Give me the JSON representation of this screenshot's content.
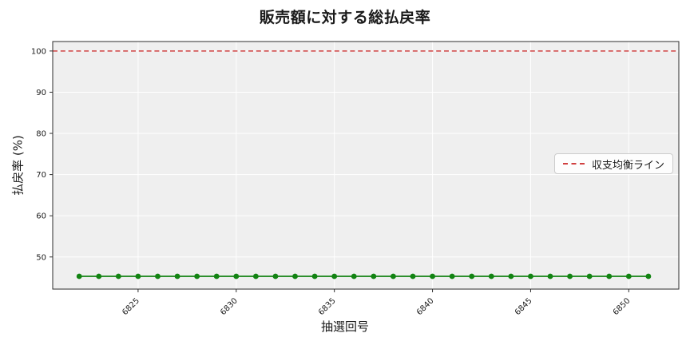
{
  "chart_data": {
    "type": "line",
    "title": "販売額に対する総払戻率",
    "xlabel": "抽選回号",
    "ylabel": "払戻率 (%)",
    "x": [
      6822,
      6823,
      6824,
      6825,
      6826,
      6827,
      6828,
      6829,
      6830,
      6831,
      6832,
      6833,
      6834,
      6835,
      6836,
      6837,
      6838,
      6839,
      6840,
      6841,
      6842,
      6843,
      6844,
      6845,
      6846,
      6847,
      6848,
      6849,
      6850,
      6851
    ],
    "series": [
      {
        "name": "総払戻率",
        "color": "#128312",
        "marker": "circle",
        "values": [
          45.3,
          45.3,
          45.3,
          45.3,
          45.3,
          45.3,
          45.3,
          45.3,
          45.3,
          45.3,
          45.3,
          45.3,
          45.3,
          45.3,
          45.3,
          45.3,
          45.3,
          45.3,
          45.3,
          45.3,
          45.3,
          45.3,
          45.3,
          45.3,
          45.3,
          45.3,
          45.3,
          45.3,
          45.3,
          45.3
        ]
      }
    ],
    "reference_line": {
      "label": "収支均衡ライン",
      "value": 100,
      "color": "#d04040",
      "style": "dashed"
    },
    "xticks": [
      6825,
      6830,
      6835,
      6840,
      6845,
      6850
    ],
    "yticks": [
      50,
      60,
      70,
      80,
      90,
      100
    ],
    "xlim": [
      6820.65,
      6852.55
    ],
    "ylim": [
      42.2,
      102.3
    ],
    "grid": true,
    "plot_bg": "#efefef",
    "grid_color": "#ffffff",
    "spine_color": "#2e2e2e",
    "legend_position": "center-right",
    "xtick_rotation": 45
  }
}
